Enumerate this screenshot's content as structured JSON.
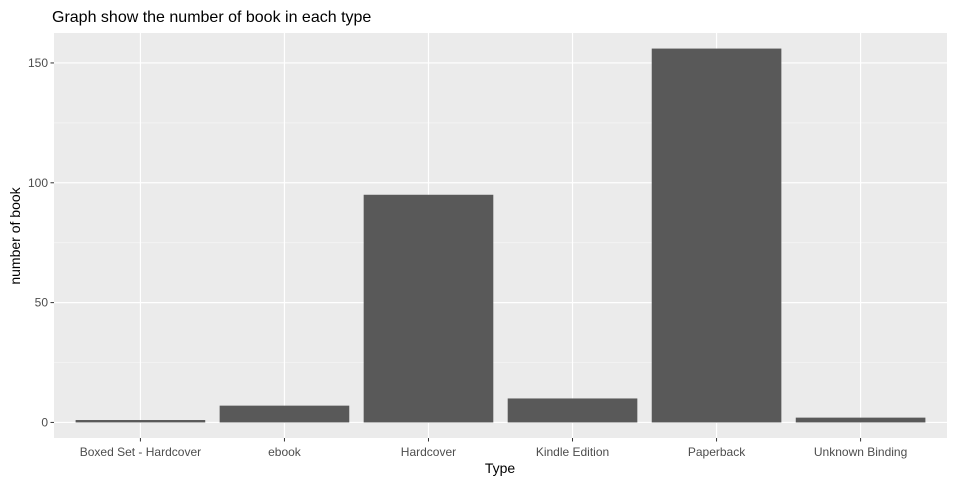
{
  "chart_data": {
    "type": "bar",
    "title": "Graph show the number of book in each type",
    "xlabel": "Type",
    "ylabel": "number of book",
    "categories": [
      "Boxed Set - Hardcover",
      "ebook",
      "Hardcover",
      "Kindle Edition",
      "Paperback",
      "Unknown Binding"
    ],
    "values": [
      1,
      7,
      95,
      10,
      156,
      2
    ],
    "ylim": [
      -6.5,
      162.5
    ],
    "yticks": [
      0,
      50,
      100,
      150
    ],
    "ytick_labels": [
      "0",
      "50",
      "100",
      "150"
    ],
    "grid": true,
    "legend": "none",
    "colors": {
      "bar": "#595959",
      "panel_background": "#ebebeb",
      "grid_major": "#ffffff",
      "grid_minor": "#f5f5f5",
      "tick_text": "#4d4d4d",
      "tick_mark": "#333333",
      "text": "#000000"
    }
  }
}
